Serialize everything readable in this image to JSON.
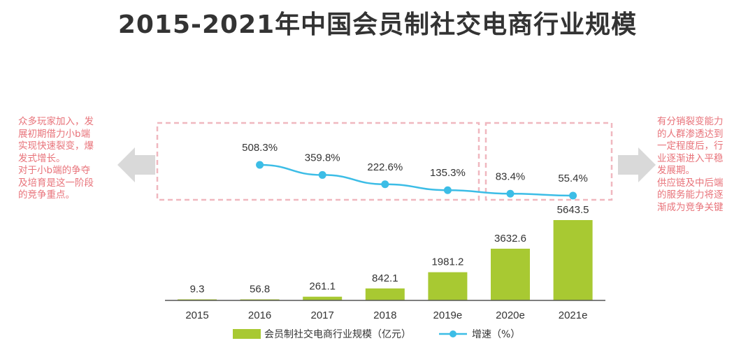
{
  "title": "2015-2021年中国会员制社交电商行业规模",
  "notes": {
    "left": "众多玩家加入，发\n展初期借力小b端\n实现快速裂变，爆\n发式增长。\n对于小b端的争夺\n及培育是这一阶段\n的竞争重点。",
    "right": "有分销裂变能力\n的人群渗透达到\n一定程度后，行\n业逐渐进入平稳\n发展期。\n供应链及中后端\n的服务能力将逐\n渐成为竞争关键"
  },
  "colors": {
    "bar": "#a8c932",
    "line": "#3cbde6",
    "note": "#e8737a",
    "dashed_box": "#f0b7bf",
    "arrow": "#d9d9d9"
  },
  "icons": {
    "left_arrow": "arrow-left-icon",
    "right_arrow": "arrow-right-icon"
  },
  "chart_data": {
    "type": "bar",
    "categories": [
      "2015",
      "2016",
      "2017",
      "2018",
      "2019e",
      "2020e",
      "2021e"
    ],
    "series": [
      {
        "name": "会员制社交电商行业规模（亿元）",
        "type": "bar",
        "values": [
          9.3,
          56.8,
          261.1,
          842.1,
          1981.2,
          3632.6,
          5643.5
        ],
        "labels": [
          "9.3",
          "56.8",
          "261.1",
          "842.1",
          "1981.2",
          "3632.6",
          "5643.5"
        ]
      },
      {
        "name": "增速（%）",
        "type": "line",
        "values": [
          null,
          508.3,
          359.8,
          222.6,
          135.3,
          83.4,
          55.4
        ],
        "labels": [
          "",
          "508.3%",
          "359.8%",
          "222.6%",
          "135.3%",
          "83.4%",
          "55.4%"
        ]
      }
    ],
    "title": "2015-2021年中国会员制社交电商行业规模",
    "legend": "bottom",
    "grid": false
  }
}
